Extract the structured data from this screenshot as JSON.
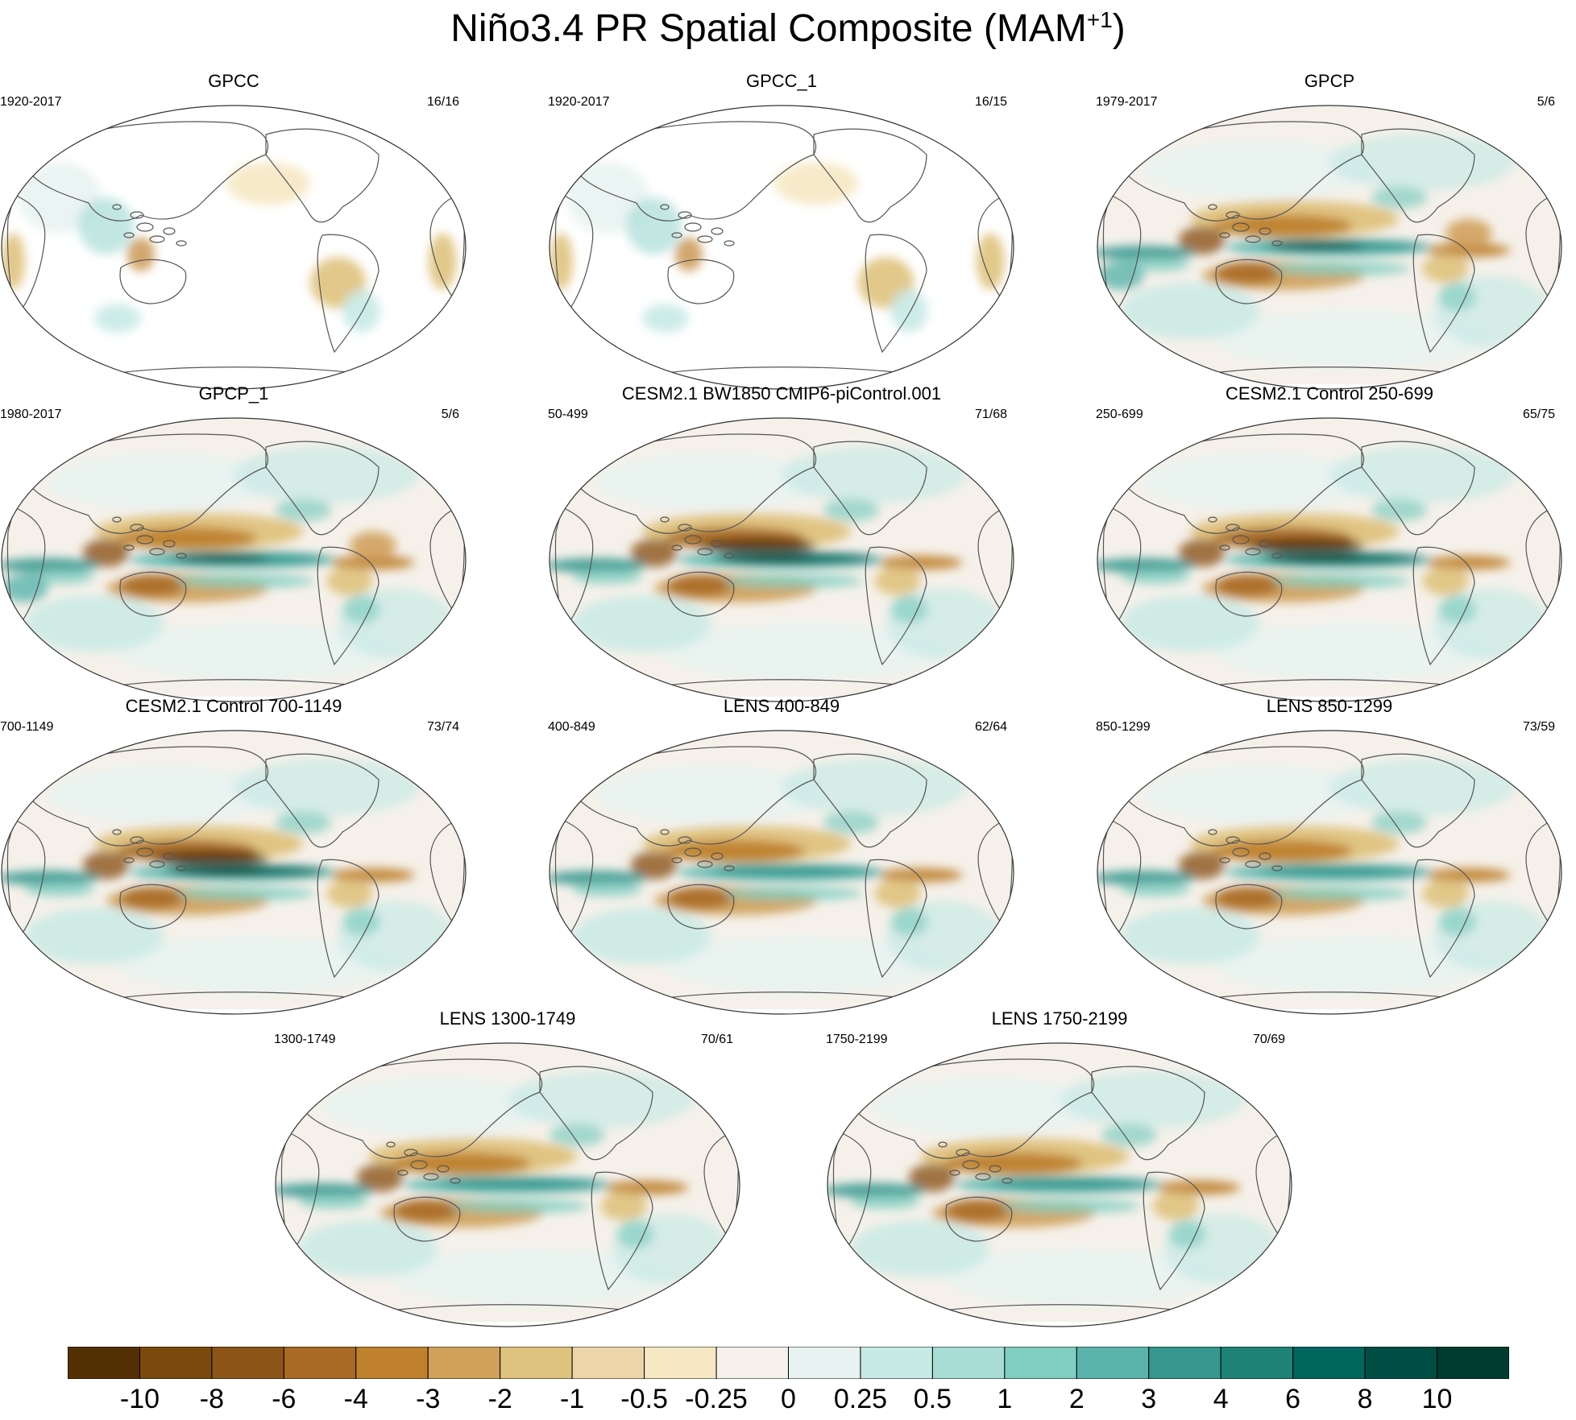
{
  "figure": {
    "title_main": "Niño3.4 PR Spatial Composite (MAM",
    "title_sup": "+1",
    "title_close": ")"
  },
  "chart_data": {
    "type": "heatmap",
    "title": "Niño3.4 PR Spatial Composite (MAM+1)",
    "projection": "Robinson, Pacific-centered",
    "panels": [
      {
        "title": "GPCC",
        "years": "1920-2017",
        "count": "16/16",
        "style": "obs_land"
      },
      {
        "title": "GPCC_1",
        "years": "1920-2017",
        "count": "16/15",
        "style": "obs_land"
      },
      {
        "title": "GPCP",
        "years": "1979-2017",
        "count": "5/6",
        "style": "obs"
      },
      {
        "title": "GPCP_1",
        "years": "1980-2017",
        "count": "5/6",
        "style": "obs"
      },
      {
        "title": "CESM2.1 BW1850 CMIP6-piControl.001",
        "years": "50-499",
        "count": "71/68",
        "style": "model_strong"
      },
      {
        "title": "CESM2.1 Control 250-699",
        "years": "250-699",
        "count": "65/75",
        "style": "model_strong"
      },
      {
        "title": "CESM2.1 Control 700-1149",
        "years": "700-1149",
        "count": "73/74",
        "style": "model_strong"
      },
      {
        "title": "LENS 400-849",
        "years": "400-849",
        "count": "62/64",
        "style": "model"
      },
      {
        "title": "LENS 850-1299",
        "years": "850-1299",
        "count": "73/59",
        "style": "model"
      },
      {
        "title": "LENS 1300-1749",
        "years": "1300-1749",
        "count": "70/61",
        "style": "model"
      },
      {
        "title": "LENS 1750-2199",
        "years": "1750-2199",
        "count": "70/69",
        "style": "model"
      }
    ],
    "colorbar": {
      "labels": [
        "-10",
        "-8",
        "-6",
        "-4",
        "-3",
        "-2",
        "-1",
        "-0.5",
        "-0.25",
        "0",
        "0.25",
        "0.5",
        "1",
        "2",
        "3",
        "4",
        "6",
        "8",
        "10"
      ],
      "colors": [
        "#543005",
        "#7a4a0d",
        "#8c5416",
        "#a86a25",
        "#bf812d",
        "#d1a15c",
        "#dfc27d",
        "#ecd6a8",
        "#f6e8c3",
        "#f5f1ea",
        "#e8f3f1",
        "#c7eae5",
        "#a8ddd5",
        "#80cdc1",
        "#5ab4ac",
        "#35978f",
        "#1f8276",
        "#01665e",
        "#004d44",
        "#003c30"
      ]
    }
  }
}
